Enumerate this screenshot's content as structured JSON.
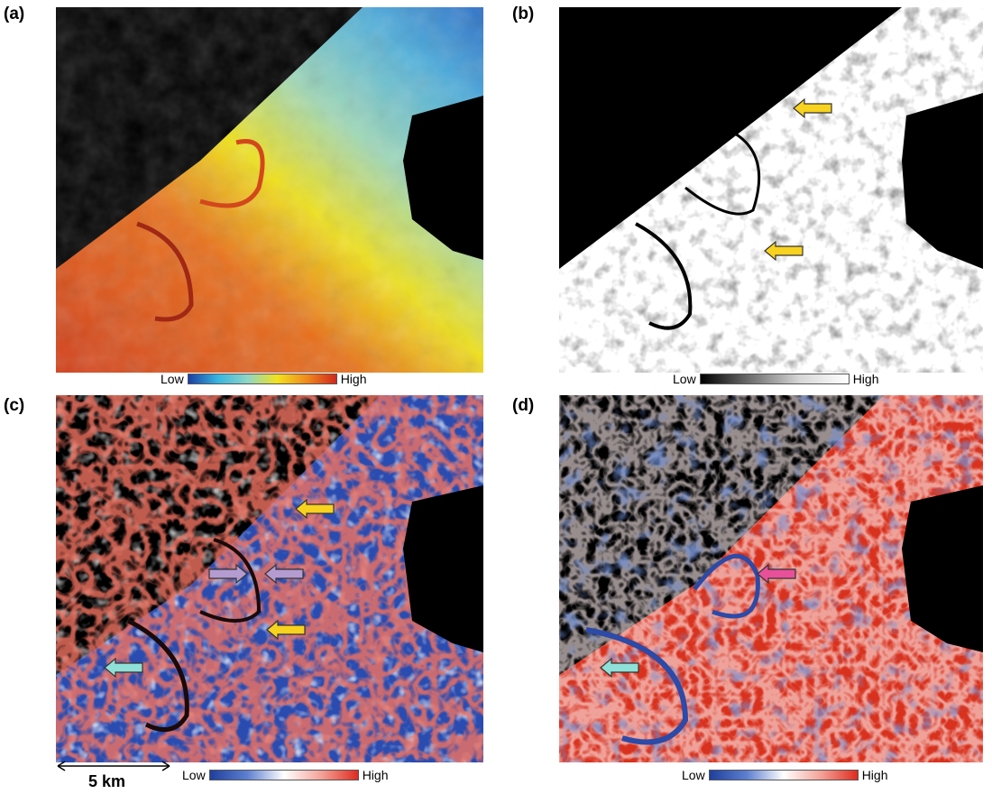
{
  "panels": [
    {
      "id": "a",
      "label": "(a)",
      "colorbar": {
        "low": "Low",
        "high": "High",
        "colors": [
          "#1a3fa6",
          "#38b6e0",
          "#8fd6c6",
          "#f2e21c",
          "#f08a1c",
          "#d2281c"
        ]
      }
    },
    {
      "id": "b",
      "label": "(b)",
      "colorbar": {
        "low": "Low",
        "high": "High",
        "colors": [
          "#000000",
          "#6e6e6e",
          "#d6d6d6",
          "#ffffff"
        ]
      }
    },
    {
      "id": "c",
      "label": "(c)",
      "colorbar": {
        "low": "Low",
        "high": "High",
        "colors": [
          "#1f3f9e",
          "#5d7fd0",
          "#ffffff",
          "#f4a39a",
          "#e02b1e"
        ]
      }
    },
    {
      "id": "d",
      "label": "(d)",
      "colorbar": {
        "low": "Low",
        "high": "High",
        "colors": [
          "#1f3f9e",
          "#5d7fd0",
          "#ffffff",
          "#f4a39a",
          "#e02b1e"
        ]
      }
    }
  ],
  "scale_bar": {
    "text": "5 km"
  },
  "arrow_colors": {
    "yellow": "#f7d21e",
    "purple": "#b49bd0",
    "cyan": "#8fe0d8",
    "pink": "#e8509a"
  }
}
